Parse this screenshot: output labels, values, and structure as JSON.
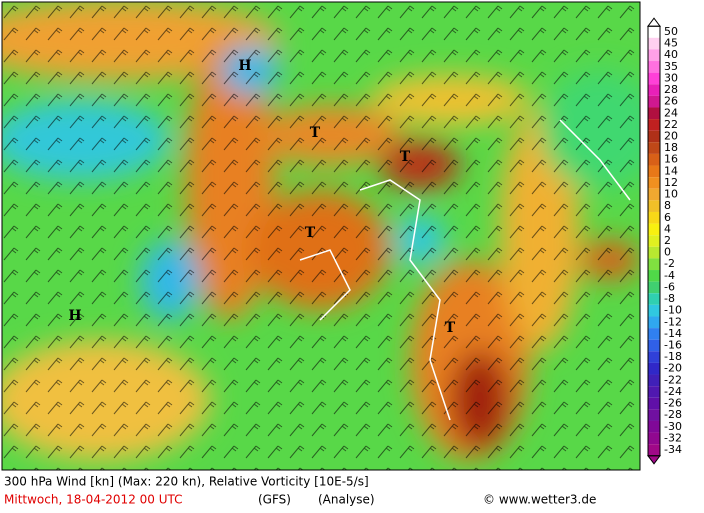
{
  "map": {
    "centers": [
      "H",
      "T",
      "T",
      "T",
      "H",
      "T"
    ]
  },
  "colorbar": {
    "labels": [
      50,
      45,
      40,
      35,
      30,
      28,
      26,
      24,
      22,
      20,
      18,
      16,
      14,
      12,
      10,
      8,
      6,
      4,
      2,
      0,
      -2,
      -4,
      -6,
      -8,
      -10,
      -12,
      -14,
      -16,
      -18,
      -20,
      -22,
      -24,
      -26,
      -28,
      -30,
      -32,
      -34
    ],
    "colors": [
      "#ffffff",
      "#ffd0f0",
      "#ffa0e8",
      "#ff70e0",
      "#ff40d8",
      "#e820b8",
      "#d01890",
      "#b01040",
      "#c02020",
      "#b03018",
      "#c04818",
      "#d86018",
      "#e87818",
      "#f09020",
      "#f0a830",
      "#f0c028",
      "#f8d818",
      "#f8f010",
      "#e0f020",
      "#b8e830",
      "#80e040",
      "#50d848",
      "#40d070",
      "#30d0b0",
      "#30c8e0",
      "#30a8f0",
      "#3080f0",
      "#3060e8",
      "#3040d8",
      "#3028c8",
      "#4020b8",
      "#5018b0",
      "#6010a8",
      "#7010a0",
      "#800898",
      "#900890",
      "#a00888"
    ]
  },
  "footer": {
    "line1": "300 hPa Wind [kn] (Max: 220 kn), Relative Vorticity [10E-5/s]",
    "date": "Mittwoch, 18-04-2012  00 UTC",
    "model": "(GFS)",
    "run": "(Analyse)",
    "credit": "© www.wetter3.de"
  }
}
